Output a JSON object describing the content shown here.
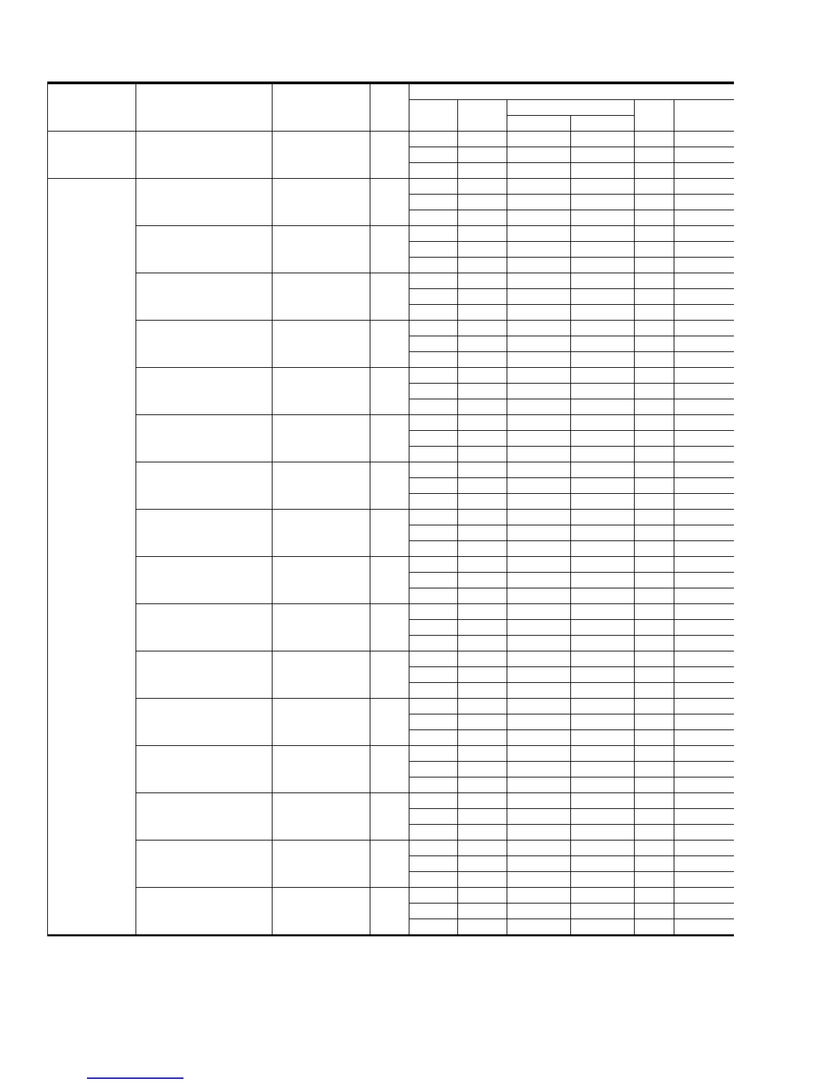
{
  "table": {
    "header": [],
    "rows": []
  },
  "colors": {
    "rule": "#000000",
    "link": "#1a1aa6"
  }
}
